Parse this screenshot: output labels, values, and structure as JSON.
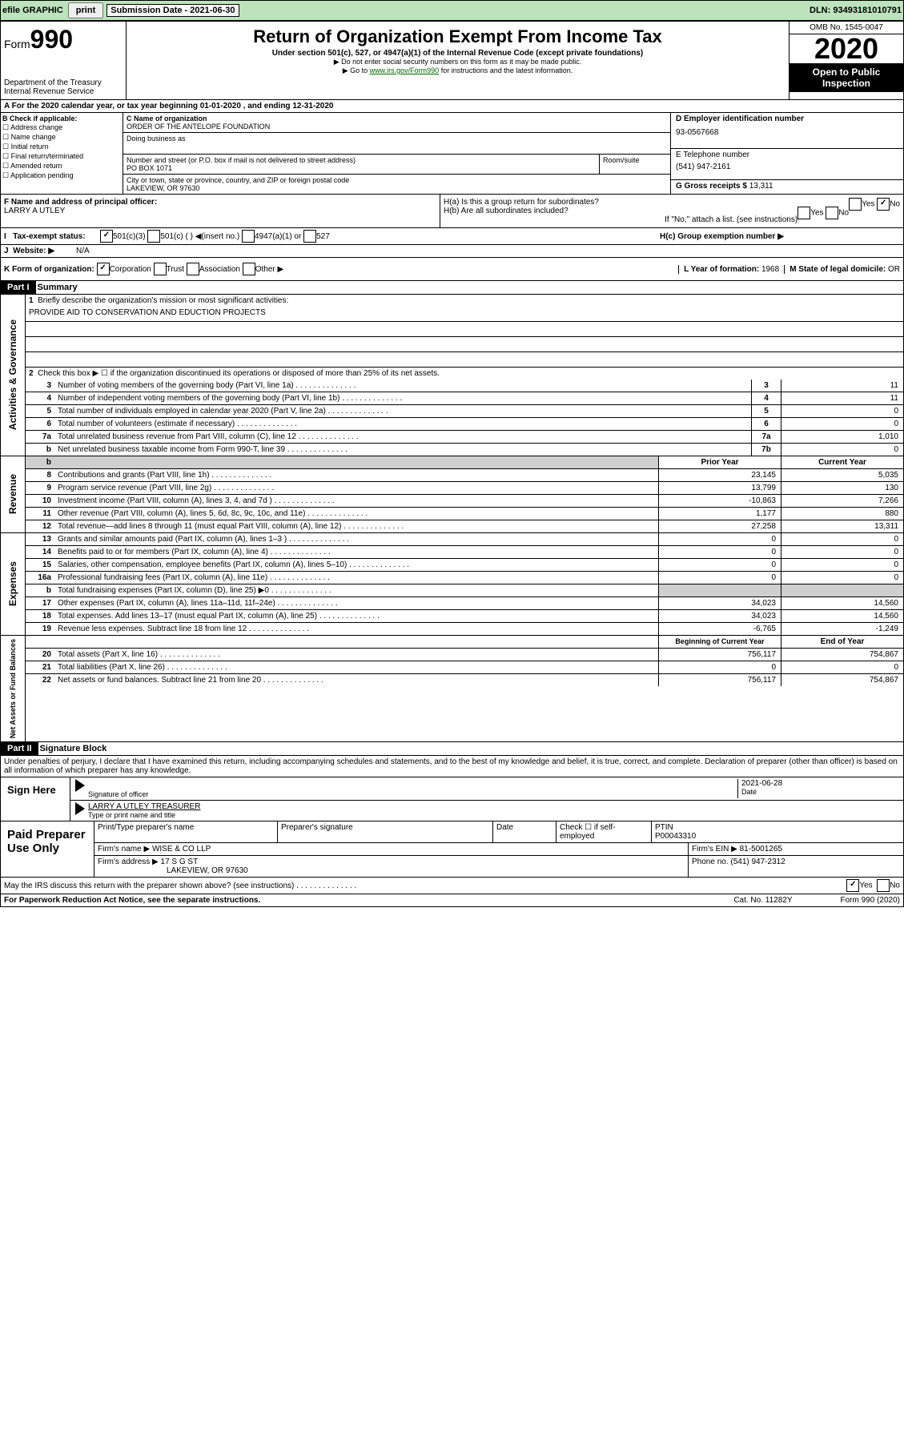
{
  "top": {
    "efile": "efile GRAPHIC",
    "print": "print",
    "subdate_label": "Submission Date - 2021-06-30",
    "dln": "DLN: 93493181010791"
  },
  "header": {
    "form_word": "Form",
    "form_num": "990",
    "dept": "Department of the Treasury\nInternal Revenue Service",
    "title": "Return of Organization Exempt From Income Tax",
    "sub": "Under section 501(c), 527, or 4947(a)(1) of the Internal Revenue Code (except private foundations)",
    "l1": "▶ Do not enter social security numbers on this form as it may be made public.",
    "l2_pre": "▶ Go to ",
    "l2_link": "www.irs.gov/Form990",
    "l2_post": " for instructions and the latest information.",
    "omb": "OMB No. 1545-0047",
    "year": "2020",
    "open": "Open to Public Inspection"
  },
  "period": "A For the 2020 calendar year, or tax year beginning 01-01-2020    , and ending 12-31-2020",
  "b": {
    "title": "B Check if applicable:",
    "opts": [
      "Address change",
      "Name change",
      "Initial return",
      "Final return/terminated",
      "Amended return",
      "Application pending"
    ]
  },
  "c": {
    "name_lbl": "C Name of organization",
    "name": "ORDER OF THE ANTELOPE FOUNDATION",
    "dba_lbl": "Doing business as",
    "addr_lbl": "Number and street (or P.O. box if mail is not delivered to street address)",
    "room": "Room/suite",
    "addr": "PO BOX 1071",
    "city_lbl": "City or town, state or province, country, and ZIP or foreign postal code",
    "city": "LAKEVIEW, OR  97630"
  },
  "d": {
    "lbl": "D Employer identification number",
    "val": "93-0567668"
  },
  "e": {
    "lbl": "E Telephone number",
    "val": "(541) 947-2161"
  },
  "g": {
    "lbl": "G Gross receipts $ ",
    "val": "13,311"
  },
  "f": {
    "lbl": "F  Name and address of principal officer:",
    "val": "LARRY A UTLEY"
  },
  "h": {
    "a": "H(a)  Is this a group return for subordinates?",
    "b": "H(b)  Are all subordinates included?",
    "note": "If \"No,\" attach a list. (see instructions)",
    "c": "H(c)  Group exemption number ▶",
    "yes": "Yes",
    "no": "No"
  },
  "i": {
    "lbl": "Tax-exempt status:",
    "o1": "501(c)(3)",
    "o2": "501(c) (  ) ◀(insert no.)",
    "o3": "4947(a)(1) or",
    "o4": "527"
  },
  "j": {
    "lbl": "Website: ▶",
    "val": "N/A"
  },
  "k": {
    "lbl": "K Form of organization:",
    "o": [
      "Corporation",
      "Trust",
      "Association",
      "Other ▶"
    ]
  },
  "l": {
    "lbl": "L Year of formation: ",
    "val": "1968"
  },
  "m": {
    "lbl": "M State of legal domicile: ",
    "val": "OR"
  },
  "p1": {
    "part": "Part I",
    "title": "Summary",
    "side": "Activities & Governance",
    "l1": "Briefly describe the organization's mission or most significant activities:",
    "mission": "PROVIDE AID TO CONSERVATION AND EDUCTION PROJECTS",
    "l2": "Check this box ▶ ☐  if the organization discontinued its operations or disposed of more than 25% of its net assets.",
    "rows": [
      {
        "n": "3",
        "t": "Number of voting members of the governing body (Part VI, line 1a)",
        "box": "3",
        "v": "11"
      },
      {
        "n": "4",
        "t": "Number of independent voting members of the governing body (Part VI, line 1b)",
        "box": "4",
        "v": "11"
      },
      {
        "n": "5",
        "t": "Total number of individuals employed in calendar year 2020 (Part V, line 2a)",
        "box": "5",
        "v": "0"
      },
      {
        "n": "6",
        "t": "Total number of volunteers (estimate if necessary)",
        "box": "6",
        "v": "0"
      },
      {
        "n": "7a",
        "t": "Total unrelated business revenue from Part VIII, column (C), line 12",
        "box": "7a",
        "v": "1,010"
      },
      {
        "n": "b",
        "t": "Net unrelated business taxable income from Form 990-T, line 39",
        "box": "7b",
        "v": "0"
      }
    ]
  },
  "rev": {
    "side": "Revenue",
    "h1": "Prior Year",
    "h2": "Current Year",
    "rows": [
      {
        "n": "8",
        "t": "Contributions and grants (Part VIII, line 1h)",
        "p": "23,145",
        "c": "5,035"
      },
      {
        "n": "9",
        "t": "Program service revenue (Part VIII, line 2g)",
        "p": "13,799",
        "c": "130"
      },
      {
        "n": "10",
        "t": "Investment income (Part VIII, column (A), lines 3, 4, and 7d )",
        "p": "-10,863",
        "c": "7,266"
      },
      {
        "n": "11",
        "t": "Other revenue (Part VIII, column (A), lines 5, 6d, 8c, 9c, 10c, and 11e)",
        "p": "1,177",
        "c": "880"
      },
      {
        "n": "12",
        "t": "Total revenue—add lines 8 through 11 (must equal Part VIII, column (A), line 12)",
        "p": "27,258",
        "c": "13,311"
      }
    ]
  },
  "exp": {
    "side": "Expenses",
    "rows": [
      {
        "n": "13",
        "t": "Grants and similar amounts paid (Part IX, column (A), lines 1–3 )",
        "p": "0",
        "c": "0"
      },
      {
        "n": "14",
        "t": "Benefits paid to or for members (Part IX, column (A), line 4)",
        "p": "0",
        "c": "0"
      },
      {
        "n": "15",
        "t": "Salaries, other compensation, employee benefits (Part IX, column (A), lines 5–10)",
        "p": "0",
        "c": "0"
      },
      {
        "n": "16a",
        "t": "Professional fundraising fees (Part IX, column (A), line 11e)",
        "p": "0",
        "c": "0"
      },
      {
        "n": "b",
        "t": "Total fundraising expenses (Part IX, column (D), line 25) ▶0",
        "p": "",
        "c": "",
        "grey": true
      },
      {
        "n": "17",
        "t": "Other expenses (Part IX, column (A), lines 11a–11d, 11f–24e)",
        "p": "34,023",
        "c": "14,560"
      },
      {
        "n": "18",
        "t": "Total expenses. Add lines 13–17 (must equal Part IX, column (A), line 25)",
        "p": "34,023",
        "c": "14,560"
      },
      {
        "n": "19",
        "t": "Revenue less expenses. Subtract line 18 from line 12",
        "p": "-6,765",
        "c": "-1,249"
      }
    ]
  },
  "net": {
    "side": "Net Assets or Fund Balances",
    "h1": "Beginning of Current Year",
    "h2": "End of Year",
    "rows": [
      {
        "n": "20",
        "t": "Total assets (Part X, line 16)",
        "p": "756,117",
        "c": "754,867"
      },
      {
        "n": "21",
        "t": "Total liabilities (Part X, line 26)",
        "p": "0",
        "c": "0"
      },
      {
        "n": "22",
        "t": "Net assets or fund balances. Subtract line 21 from line 20",
        "p": "756,117",
        "c": "754,867"
      }
    ]
  },
  "p2": {
    "part": "Part II",
    "title": "Signature Block",
    "jurat": "Under penalties of perjury, I declare that I have examined this return, including accompanying schedules and statements, and to the best of my knowledge and belief, it is true, correct, and complete. Declaration of preparer (other than officer) is based on all information of which preparer has any knowledge."
  },
  "sign": {
    "here": "Sign Here",
    "sig_lbl": "Signature of officer",
    "date_lbl": "Date",
    "date": "2021-06-28",
    "name": "LARRY A UTLEY  TREASURER",
    "name_lbl": "Type or print name and title"
  },
  "paid": {
    "title": "Paid Preparer Use Only",
    "h": [
      "Print/Type preparer's name",
      "Preparer's signature",
      "Date"
    ],
    "check": "Check ☐ if self-employed",
    "ptin_lbl": "PTIN",
    "ptin": "P00043310",
    "firm_lbl": "Firm's name   ▶",
    "firm": "WISE & CO LLP",
    "ein_lbl": "Firm's EIN ▶",
    "ein": "81-5001265",
    "addr_lbl": "Firm's address ▶",
    "addr1": "17 S G ST",
    "addr2": "LAKEVIEW, OR  97630",
    "ph_lbl": "Phone no. ",
    "ph": "(541) 947-2312"
  },
  "discuss": {
    "t": "May the IRS discuss this return with the preparer shown above? (see instructions)",
    "yes": "Yes",
    "no": "No"
  },
  "foot": {
    "l": "For Paperwork Reduction Act Notice, see the separate instructions.",
    "m": "Cat. No. 11282Y",
    "r": "Form 990 (2020)"
  }
}
